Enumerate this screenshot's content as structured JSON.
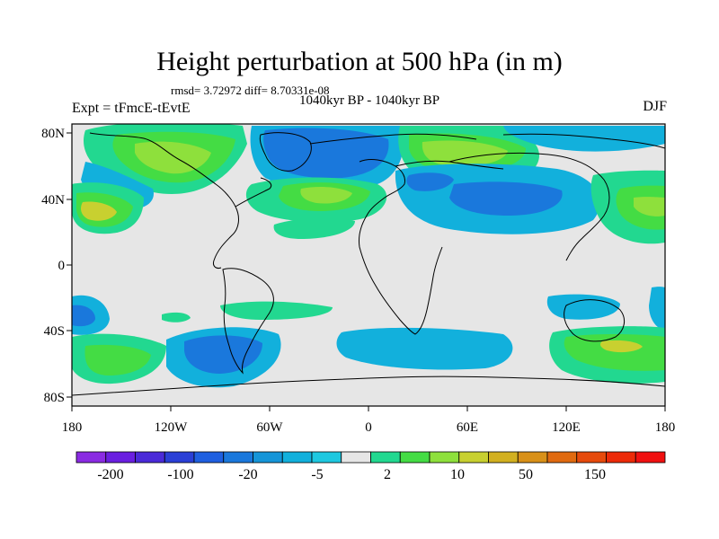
{
  "title": "Height perturbation at 500 hPa (in m)",
  "stats": "rmsd= 3.72972 diff= 8.70331e-08",
  "period": "1040kyr BP - 1040kyr BP",
  "experiment": "Expt = tFmcE-tEvtE",
  "season": "DJF",
  "lat_labels": [
    "80N",
    "40N",
    "0",
    "40S",
    "80S"
  ],
  "lon_labels": [
    "180",
    "120W",
    "60W",
    "0",
    "60E",
    "120E",
    "180"
  ],
  "colorbar": {
    "labels": [
      "-200",
      "-100",
      "-20",
      "-5",
      "2",
      "10",
      "50",
      "150"
    ],
    "colors": [
      "#8a2be2",
      "#6a1fe0",
      "#4a2ad8",
      "#2a3fd6",
      "#1f5fe0",
      "#1a78dc",
      "#1595d8",
      "#12b0dc",
      "#1ec8e0",
      "#e6e6e6",
      "#22d890",
      "#44dc44",
      "#8ee03c",
      "#c8d030",
      "#d2b020",
      "#d89018",
      "#e06a10",
      "#e64a0c",
      "#ec2a08",
      "#f01010"
    ]
  },
  "map": {
    "background": "#e6e6e6",
    "regions": [
      {
        "level": "10",
        "color": "#44dc44"
      },
      {
        "level": "50",
        "color": "#c8d030"
      },
      {
        "level": "2",
        "color": "#22d890"
      },
      {
        "level": "-5",
        "color": "#12b0dc"
      },
      {
        "level": "-20",
        "color": "#1a78dc"
      }
    ]
  }
}
